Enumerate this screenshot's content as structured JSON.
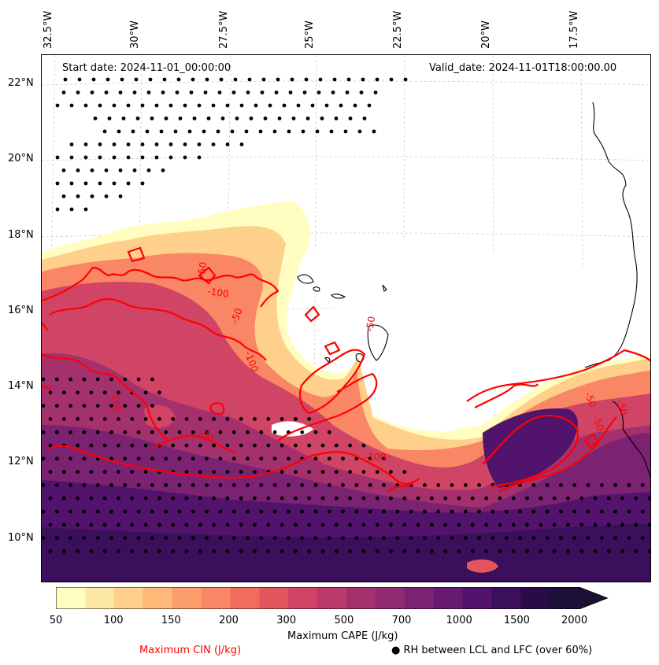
{
  "map": {
    "start_label": "Start date: 2024-11-01_00:00:00",
    "valid_label": "Valid_date: 2024-11-01T18:00:00.00",
    "lon_labels": [
      "32.5°W",
      "30°W",
      "27.5°W",
      "25°W",
      "22.5°W",
      "20°W",
      "17.5°W"
    ],
    "lat_labels": [
      "22°N",
      "20°N",
      "18°N",
      "16°N",
      "14°N",
      "12°N",
      "10°N"
    ],
    "contour_labels": [
      "-50",
      "-100",
      "-50",
      "-100",
      "-100",
      "-50",
      "-50",
      "-100",
      "-50",
      "-50",
      "-50"
    ],
    "colors": {
      "cin_contour": "#ff0000",
      "coast": "#000000",
      "grid": "#cccccc",
      "dots": "#000000"
    }
  },
  "colorbar": {
    "tick_labels": [
      "50",
      "100",
      "150",
      "200",
      "300",
      "500",
      "700",
      "1000",
      "1500",
      "2000"
    ],
    "colors": [
      "#fffdbf",
      "#fee8a5",
      "#fed08c",
      "#feb878",
      "#fd9f6c",
      "#f98664",
      "#f26c5d",
      "#e3565d",
      "#d04565",
      "#bb3a6a",
      "#a5306e",
      "#912a71",
      "#7b2272",
      "#661a72",
      "#51136c",
      "#3b0f5c",
      "#2a0b48",
      "#1c1037"
    ],
    "label": "Maximum CAPE (J/kg)"
  },
  "legend": {
    "cin_label": "Maximum CIN (J/kg)",
    "rh_label": "RH between LCL and LFC (over 60%)",
    "rh_marker": "●"
  }
}
